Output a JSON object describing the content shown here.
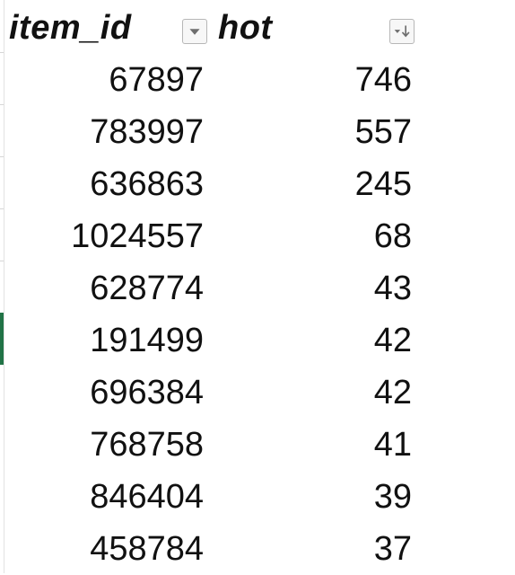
{
  "table": {
    "columns": [
      {
        "label": "item_id",
        "filter_icon": "dropdown-arrow-icon"
      },
      {
        "label": "hot",
        "filter_icon": "sort-descending-filter-icon"
      }
    ],
    "rows": [
      {
        "item_id": "67897",
        "hot": "746"
      },
      {
        "item_id": "783997",
        "hot": "557"
      },
      {
        "item_id": "636863",
        "hot": "245"
      },
      {
        "item_id": "1024557",
        "hot": "68"
      },
      {
        "item_id": "628774",
        "hot": "43"
      },
      {
        "item_id": "191499",
        "hot": "42"
      },
      {
        "item_id": "696384",
        "hot": "42"
      },
      {
        "item_id": "768758",
        "hot": "41"
      },
      {
        "item_id": "846404",
        "hot": "39"
      },
      {
        "item_id": "458784",
        "hot": "37"
      }
    ]
  },
  "colors": {
    "active_row_marker": "#217346",
    "filter_button_border": "#b7b7b7",
    "filter_button_fill": "#f7f7f7",
    "icon": "#6e6e6e"
  }
}
